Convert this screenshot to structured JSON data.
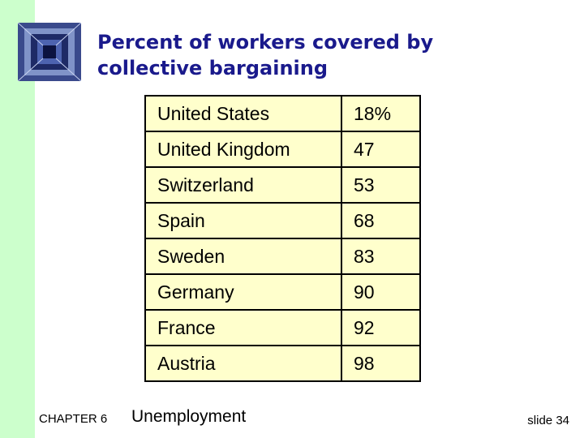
{
  "slide": {
    "title_line1": "Percent of workers covered by",
    "title_line2": "collective bargaining"
  },
  "table": {
    "rows": [
      {
        "country": "United States",
        "value": "18%"
      },
      {
        "country": "United Kingdom",
        "value": "47"
      },
      {
        "country": "Switzerland",
        "value": "53"
      },
      {
        "country": "Spain",
        "value": "68"
      },
      {
        "country": "Sweden",
        "value": "83"
      },
      {
        "country": "Germany",
        "value": "90"
      },
      {
        "country": "France",
        "value": "92"
      },
      {
        "country": "Austria",
        "value": "98"
      }
    ]
  },
  "footer": {
    "chapter": "CHAPTER 6",
    "topic": "Unemployment",
    "slide_number": "slide 34"
  },
  "colors": {
    "accent_bar": "#ccffcc",
    "table_fill": "#ffffcc",
    "title_text": "#1a1a8c"
  }
}
